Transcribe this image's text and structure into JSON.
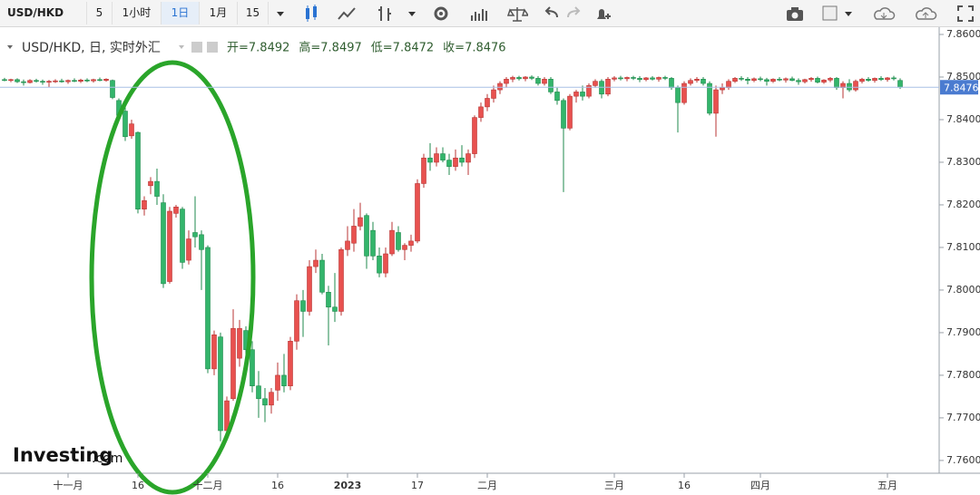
{
  "toolbar": [
    "USD/HKD",
    "5",
    "1小时",
    "1日",
    "1月",
    "15"
  ],
  "chart_data": {
    "type": "candlestick",
    "title": "USD/HKD, 日, 实时外汇",
    "info": [
      "开=7.8492",
      "高=7.8497",
      "低=7.8472",
      "收=7.8476"
    ],
    "watermark": [
      "Investing",
      ".com"
    ],
    "up_color": "#e8514f",
    "down_color": "#33b56b",
    "grid": false,
    "ylim": [
      7.757,
      7.8617
    ],
    "yticks": [
      {
        "value": 7.86,
        "label": "7.8600"
      },
      {
        "value": 7.85,
        "label": "7.8500"
      },
      {
        "value": 7.84,
        "label": "7.8400"
      },
      {
        "value": 7.83,
        "label": "7.8300"
      },
      {
        "value": 7.82,
        "label": "7.8200"
      },
      {
        "value": 7.81,
        "label": "7.8100"
      },
      {
        "value": 7.8,
        "label": "7.8000"
      },
      {
        "value": 7.79,
        "label": "7.7900"
      },
      {
        "value": 7.78,
        "label": "7.7800"
      },
      {
        "value": 7.77,
        "label": "7.7700"
      },
      {
        "value": 7.76,
        "label": "7.7600"
      }
    ],
    "categories": [
      null,
      null,
      null,
      null,
      null,
      null,
      null,
      null,
      null,
      null,
      "十一月",
      null,
      null,
      null,
      null,
      null,
      null,
      null,
      null,
      null,
      null,
      "16",
      null,
      null,
      null,
      null,
      null,
      null,
      null,
      null,
      null,
      null,
      "十二月",
      null,
      null,
      null,
      null,
      null,
      null,
      null,
      null,
      null,
      null,
      "16",
      null,
      null,
      null,
      null,
      null,
      null,
      null,
      null,
      null,
      null,
      "2023",
      null,
      null,
      null,
      null,
      null,
      null,
      null,
      null,
      null,
      null,
      "17",
      null,
      null,
      null,
      null,
      null,
      null,
      null,
      null,
      null,
      null,
      "二月",
      null,
      null,
      null,
      null,
      null,
      null,
      null,
      null,
      null,
      null,
      null,
      null,
      null,
      null,
      null,
      null,
      null,
      null,
      null,
      "三月",
      null,
      null,
      null,
      null,
      null,
      null,
      null,
      null,
      null,
      null,
      "16",
      null,
      null,
      null,
      null,
      null,
      null,
      null,
      null,
      null,
      null,
      null,
      "四月",
      null,
      null,
      null,
      null,
      null,
      null,
      null,
      null,
      null,
      null,
      null,
      null,
      null,
      null,
      null,
      null,
      null,
      null,
      null,
      "五月",
      null,
      null
    ],
    "candles": [
      [
        7.8494,
        7.8498,
        7.849,
        7.8492
      ],
      [
        7.8492,
        7.8496,
        7.8488,
        7.8494
      ],
      [
        7.8494,
        7.8497,
        7.8486,
        7.8489
      ],
      [
        7.8489,
        7.8494,
        7.848,
        7.8487
      ],
      [
        7.8487,
        7.8495,
        7.8485,
        7.8492
      ],
      [
        7.8492,
        7.8496,
        7.8487,
        7.849
      ],
      [
        7.849,
        7.8494,
        7.8482,
        7.8488
      ],
      [
        7.8488,
        7.8493,
        7.8476,
        7.849
      ],
      [
        7.849,
        7.8495,
        7.8486,
        7.8491
      ],
      [
        7.8491,
        7.8496,
        7.8487,
        7.8489
      ],
      [
        7.8489,
        7.8494,
        7.8484,
        7.8492
      ],
      [
        7.8492,
        7.8497,
        7.8488,
        7.849
      ],
      [
        7.849,
        7.8496,
        7.8486,
        7.8493
      ],
      [
        7.8493,
        7.8497,
        7.8488,
        7.8491
      ],
      [
        7.8491,
        7.8496,
        7.8487,
        7.8494
      ],
      [
        7.8494,
        7.8499,
        7.849,
        7.8492
      ],
      [
        7.8492,
        7.8497,
        7.8489,
        7.8495
      ],
      [
        7.8492,
        7.8494,
        7.8448,
        7.8452
      ],
      [
        7.8445,
        7.845,
        7.84,
        7.841
      ],
      [
        7.842,
        7.843,
        7.835,
        7.836
      ],
      [
        7.8362,
        7.84,
        7.8355,
        7.839
      ],
      [
        7.837,
        7.8372,
        7.818,
        7.819
      ],
      [
        7.819,
        7.822,
        7.8175,
        7.821
      ],
      [
        7.8245,
        7.8265,
        7.8225,
        7.8255
      ],
      [
        7.8255,
        7.8285,
        7.82,
        7.822
      ],
      [
        7.8205,
        7.8225,
        7.8005,
        7.8015
      ],
      [
        7.802,
        7.8195,
        7.8015,
        7.8185
      ],
      [
        7.818,
        7.82,
        7.817,
        7.8195
      ],
      [
        7.819,
        7.8195,
        7.805,
        7.8065
      ],
      [
        7.807,
        7.814,
        7.806,
        7.812
      ],
      [
        7.8135,
        7.822,
        7.81,
        7.8125
      ],
      [
        7.813,
        7.814,
        7.8,
        7.8095
      ],
      [
        7.81,
        7.8105,
        7.7805,
        7.7815
      ],
      [
        7.7815,
        7.7905,
        7.78,
        7.7895
      ],
      [
        7.789,
        7.79,
        7.7645,
        7.767
      ],
      [
        7.767,
        7.775,
        7.766,
        7.774
      ],
      [
        7.7745,
        7.7955,
        7.774,
        7.791
      ],
      [
        7.784,
        7.793,
        7.782,
        7.791
      ],
      [
        7.7905,
        7.7915,
        7.783,
        7.786
      ],
      [
        7.786,
        7.788,
        7.776,
        7.7775
      ],
      [
        7.7775,
        7.781,
        7.77,
        7.7745
      ],
      [
        7.7745,
        7.777,
        7.769,
        7.773
      ],
      [
        7.773,
        7.777,
        7.771,
        7.776
      ],
      [
        7.7765,
        7.783,
        7.774,
        7.78
      ],
      [
        7.78,
        7.785,
        7.776,
        7.7775
      ],
      [
        7.7775,
        7.789,
        7.7765,
        7.788
      ],
      [
        7.788,
        7.799,
        7.786,
        7.7975
      ],
      [
        7.7975,
        7.8,
        7.789,
        7.795
      ],
      [
        7.795,
        7.807,
        7.794,
        7.8055
      ],
      [
        7.8055,
        7.8095,
        7.804,
        7.807
      ],
      [
        7.807,
        7.8085,
        7.799,
        7.7995
      ],
      [
        7.7995,
        7.801,
        7.787,
        7.796
      ],
      [
        7.796,
        7.804,
        7.7925,
        7.795
      ],
      [
        7.795,
        7.81,
        7.794,
        7.8095
      ],
      [
        7.8095,
        7.815,
        7.808,
        7.8115
      ],
      [
        7.811,
        7.819,
        7.809,
        7.815
      ],
      [
        7.815,
        7.8205,
        7.814,
        7.817
      ],
      [
        7.8175,
        7.818,
        7.805,
        7.808
      ],
      [
        7.814,
        7.816,
        7.807,
        7.808
      ],
      [
        7.808,
        7.81,
        7.803,
        7.804
      ],
      [
        7.804,
        7.81,
        7.803,
        7.8085
      ],
      [
        7.8085,
        7.816,
        7.808,
        7.814
      ],
      [
        7.8135,
        7.815,
        7.809,
        7.8095
      ],
      [
        7.8095,
        7.811,
        7.807,
        7.8105
      ],
      [
        7.8105,
        7.813,
        7.809,
        7.8115
      ],
      [
        7.8115,
        7.826,
        7.811,
        7.825
      ],
      [
        7.825,
        7.832,
        7.824,
        7.831
      ],
      [
        7.831,
        7.8345,
        7.828,
        7.83
      ],
      [
        7.83,
        7.8335,
        7.829,
        7.832
      ],
      [
        7.832,
        7.8335,
        7.83,
        7.8305
      ],
      [
        7.8305,
        7.832,
        7.827,
        7.829
      ],
      [
        7.829,
        7.833,
        7.828,
        7.831
      ],
      [
        7.831,
        7.834,
        7.829,
        7.83
      ],
      [
        7.83,
        7.833,
        7.827,
        7.832
      ],
      [
        7.832,
        7.841,
        7.831,
        7.8405
      ],
      [
        7.8405,
        7.844,
        7.8395,
        7.843
      ],
      [
        7.843,
        7.846,
        7.842,
        7.845
      ],
      [
        7.845,
        7.848,
        7.844,
        7.847
      ],
      [
        7.847,
        7.849,
        7.846,
        7.8485
      ],
      [
        7.8485,
        7.85,
        7.8475,
        7.8495
      ],
      [
        7.8495,
        7.8503,
        7.8488,
        7.8499
      ],
      [
        7.8499,
        7.8503,
        7.8492,
        7.8496
      ],
      [
        7.8496,
        7.8502,
        7.849,
        7.85
      ],
      [
        7.85,
        7.8504,
        7.8493,
        7.8497
      ],
      [
        7.8497,
        7.8502,
        7.848,
        7.8485
      ],
      [
        7.8485,
        7.85,
        7.848,
        7.8495
      ],
      [
        7.8495,
        7.85,
        7.846,
        7.8465
      ],
      [
        7.8465,
        7.8475,
        7.8435,
        7.8445
      ],
      [
        7.8445,
        7.845,
        7.823,
        7.838
      ],
      [
        7.838,
        7.846,
        7.8375,
        7.8455
      ],
      [
        7.8455,
        7.847,
        7.844,
        7.8465
      ],
      [
        7.8465,
        7.848,
        7.8445,
        7.8455
      ],
      [
        7.8455,
        7.8485,
        7.845,
        7.848
      ],
      [
        7.848,
        7.8495,
        7.8475,
        7.849
      ],
      [
        7.849,
        7.8495,
        7.845,
        7.846
      ],
      [
        7.846,
        7.85,
        7.8455,
        7.8495
      ],
      [
        7.8495,
        7.8502,
        7.849,
        7.8498
      ],
      [
        7.8498,
        7.8503,
        7.8492,
        7.8496
      ],
      [
        7.8496,
        7.8501,
        7.849,
        7.8499
      ],
      [
        7.8499,
        7.8503,
        7.8493,
        7.8497
      ],
      [
        7.8497,
        7.8502,
        7.8488,
        7.8494
      ],
      [
        7.8494,
        7.85,
        7.849,
        7.8498
      ],
      [
        7.8498,
        7.8502,
        7.8492,
        7.8495
      ],
      [
        7.8495,
        7.8501,
        7.8489,
        7.8499
      ],
      [
        7.8499,
        7.8503,
        7.8493,
        7.8497
      ],
      [
        7.8497,
        7.85,
        7.847,
        7.8475
      ],
      [
        7.8475,
        7.848,
        7.837,
        7.844
      ],
      [
        7.844,
        7.849,
        7.8435,
        7.8485
      ],
      [
        7.8485,
        7.8497,
        7.848,
        7.8492
      ],
      [
        7.8492,
        7.85,
        7.8487,
        7.8495
      ],
      [
        7.8495,
        7.85,
        7.848,
        7.8485
      ],
      [
        7.8485,
        7.849,
        7.841,
        7.8415
      ],
      [
        7.8415,
        7.848,
        7.836,
        7.847
      ],
      [
        7.847,
        7.8485,
        7.846,
        7.8475
      ],
      [
        7.8475,
        7.8495,
        7.847,
        7.849
      ],
      [
        7.849,
        7.85,
        7.8486,
        7.8497
      ],
      [
        7.8497,
        7.8502,
        7.8491,
        7.8495
      ],
      [
        7.8495,
        7.85,
        7.8483,
        7.8492
      ],
      [
        7.8492,
        7.8499,
        7.8488,
        7.8496
      ],
      [
        7.8496,
        7.8501,
        7.849,
        7.8494
      ],
      [
        7.8494,
        7.8498,
        7.848,
        7.849
      ],
      [
        7.849,
        7.8497,
        7.8486,
        7.8495
      ],
      [
        7.8495,
        7.85,
        7.849,
        7.8493
      ],
      [
        7.8493,
        7.8499,
        7.8487,
        7.8496
      ],
      [
        7.8496,
        7.8501,
        7.849,
        7.8492
      ],
      [
        7.8492,
        7.8497,
        7.8482,
        7.8489
      ],
      [
        7.8489,
        7.8496,
        7.8485,
        7.8494
      ],
      [
        7.8494,
        7.85,
        7.8489,
        7.8497
      ],
      [
        7.8497,
        7.8501,
        7.8485,
        7.8488
      ],
      [
        7.8488,
        7.8495,
        7.8484,
        7.8493
      ],
      [
        7.8493,
        7.85,
        7.8488,
        7.8497
      ],
      [
        7.8497,
        7.85,
        7.847,
        7.8475
      ],
      [
        7.8475,
        7.849,
        7.845,
        7.8485
      ],
      [
        7.8485,
        7.8495,
        7.8465,
        7.847
      ],
      [
        7.847,
        7.8494,
        7.8466,
        7.849
      ],
      [
        7.849,
        7.8498,
        7.8485,
        7.8495
      ],
      [
        7.8495,
        7.85,
        7.8489,
        7.8492
      ],
      [
        7.8492,
        7.8499,
        7.8487,
        7.8497
      ],
      [
        7.8497,
        7.8502,
        7.8491,
        7.8494
      ],
      [
        7.8494,
        7.85,
        7.8489,
        7.8498
      ],
      [
        7.8498,
        7.8503,
        7.8492,
        7.8496
      ],
      [
        7.8492,
        7.8497,
        7.8472,
        7.8476
      ]
    ]
  }
}
